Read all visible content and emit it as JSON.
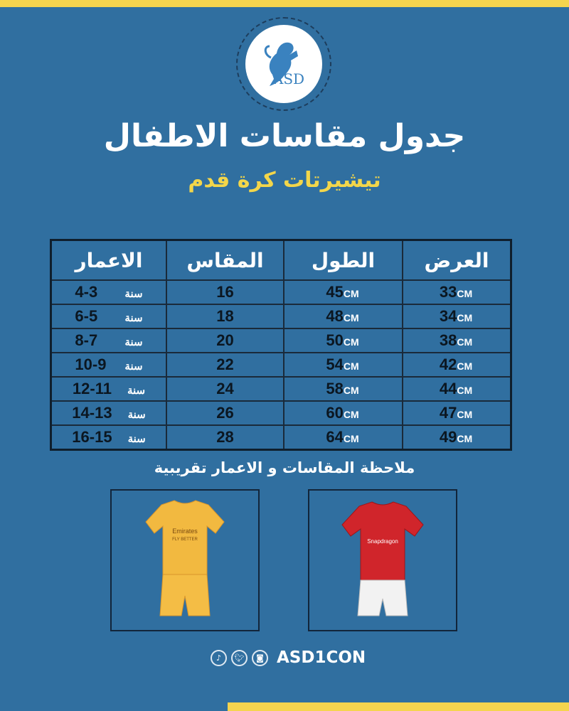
{
  "brand": {
    "logo_text": "ASD",
    "handle": "ASD1CON"
  },
  "colors": {
    "background": "#306fa0",
    "accent": "#f5d44e",
    "title": "#ffffff"
  },
  "title": "جدول مقاسات الاطفال",
  "subtitle": "تيشيرتات كرة قدم",
  "table": {
    "headers": [
      "العرض",
      "الطول",
      "المقاس",
      "الاعمار"
    ],
    "unit": "CM",
    "year_label": "سنة",
    "rows": [
      {
        "width": "33",
        "length": "45",
        "size": "16",
        "age": "4-3"
      },
      {
        "width": "34",
        "length": "48",
        "size": "18",
        "age": "6-5"
      },
      {
        "width": "38",
        "length": "50",
        "size": "20",
        "age": "8-7"
      },
      {
        "width": "42",
        "length": "54",
        "size": "22",
        "age": "10-9"
      },
      {
        "width": "44",
        "length": "58",
        "size": "24",
        "age": "12-11"
      },
      {
        "width": "47",
        "length": "60",
        "size": "26",
        "age": "14-13"
      },
      {
        "width": "49",
        "length": "64",
        "size": "28",
        "age": "16-15"
      }
    ]
  },
  "note": "ملاحظة المقاسات و الاعمار تقريبية",
  "products": [
    {
      "kit": "yellow",
      "sponsor": "Emirates",
      "sponsor_tagline": "FLY BETTER"
    },
    {
      "kit": "red",
      "sponsor": "Snapdragon"
    }
  ],
  "social_icons": [
    "tiktok-icon",
    "twitter-icon",
    "instagram-icon"
  ]
}
